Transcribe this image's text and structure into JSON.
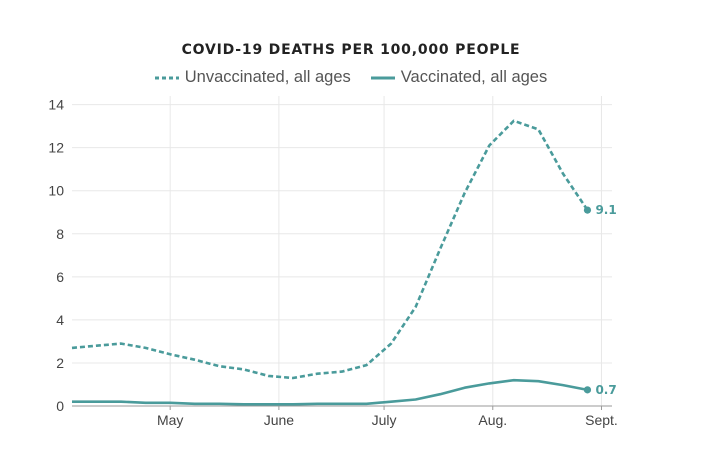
{
  "chart_data": {
    "type": "line",
    "title": "COVID-19 DEATHS PER 100,000 PEOPLE",
    "xlabel": "",
    "ylabel": "",
    "ylim": [
      0,
      14.4
    ],
    "yticks": [
      0,
      2,
      4,
      6,
      8,
      10,
      12,
      14
    ],
    "x_tick_labels": [
      {
        "label": "May",
        "date": "2021-05-01"
      },
      {
        "label": "June",
        "date": "2021-06-01"
      },
      {
        "label": "July",
        "date": "2021-07-01"
      },
      {
        "label": "Aug.",
        "date": "2021-08-01"
      },
      {
        "label": "Sept.",
        "date": "2021-09-01"
      }
    ],
    "xlim": [
      "2021-04-03",
      "2021-09-04"
    ],
    "grid": true,
    "legend_position": "top-center",
    "series": [
      {
        "name": "Unvaccinated, all ages",
        "style": "dashed",
        "color": "#4a9b9b",
        "end_label": "9.1",
        "points": [
          {
            "date": "2021-04-03",
            "value": 2.7
          },
          {
            "date": "2021-04-10",
            "value": 2.8
          },
          {
            "date": "2021-04-17",
            "value": 2.9
          },
          {
            "date": "2021-04-24",
            "value": 2.7
          },
          {
            "date": "2021-05-01",
            "value": 2.4
          },
          {
            "date": "2021-05-08",
            "value": 2.15
          },
          {
            "date": "2021-05-15",
            "value": 1.85
          },
          {
            "date": "2021-05-22",
            "value": 1.7
          },
          {
            "date": "2021-05-29",
            "value": 1.4
          },
          {
            "date": "2021-06-05",
            "value": 1.3
          },
          {
            "date": "2021-06-12",
            "value": 1.5
          },
          {
            "date": "2021-06-19",
            "value": 1.6
          },
          {
            "date": "2021-06-26",
            "value": 1.9
          },
          {
            "date": "2021-07-03",
            "value": 2.9
          },
          {
            "date": "2021-07-10",
            "value": 4.6
          },
          {
            "date": "2021-07-17",
            "value": 7.3
          },
          {
            "date": "2021-07-24",
            "value": 9.9
          },
          {
            "date": "2021-07-31",
            "value": 12.1
          },
          {
            "date": "2021-08-07",
            "value": 13.25
          },
          {
            "date": "2021-08-14",
            "value": 12.85
          },
          {
            "date": "2021-08-21",
            "value": 10.8
          },
          {
            "date": "2021-08-28",
            "value": 9.1
          }
        ]
      },
      {
        "name": "Vaccinated, all ages",
        "style": "solid",
        "color": "#4a9b9b",
        "end_label": "0.7",
        "points": [
          {
            "date": "2021-04-03",
            "value": 0.2
          },
          {
            "date": "2021-04-10",
            "value": 0.2
          },
          {
            "date": "2021-04-17",
            "value": 0.2
          },
          {
            "date": "2021-04-24",
            "value": 0.15
          },
          {
            "date": "2021-05-01",
            "value": 0.15
          },
          {
            "date": "2021-05-08",
            "value": 0.1
          },
          {
            "date": "2021-05-15",
            "value": 0.1
          },
          {
            "date": "2021-05-22",
            "value": 0.08
          },
          {
            "date": "2021-05-29",
            "value": 0.08
          },
          {
            "date": "2021-06-05",
            "value": 0.08
          },
          {
            "date": "2021-06-12",
            "value": 0.1
          },
          {
            "date": "2021-06-19",
            "value": 0.1
          },
          {
            "date": "2021-06-26",
            "value": 0.1
          },
          {
            "date": "2021-07-03",
            "value": 0.2
          },
          {
            "date": "2021-07-10",
            "value": 0.3
          },
          {
            "date": "2021-07-17",
            "value": 0.55
          },
          {
            "date": "2021-07-24",
            "value": 0.85
          },
          {
            "date": "2021-07-31",
            "value": 1.05
          },
          {
            "date": "2021-08-07",
            "value": 1.2
          },
          {
            "date": "2021-08-14",
            "value": 1.15
          },
          {
            "date": "2021-08-21",
            "value": 0.97
          },
          {
            "date": "2021-08-28",
            "value": 0.75
          }
        ]
      }
    ]
  }
}
